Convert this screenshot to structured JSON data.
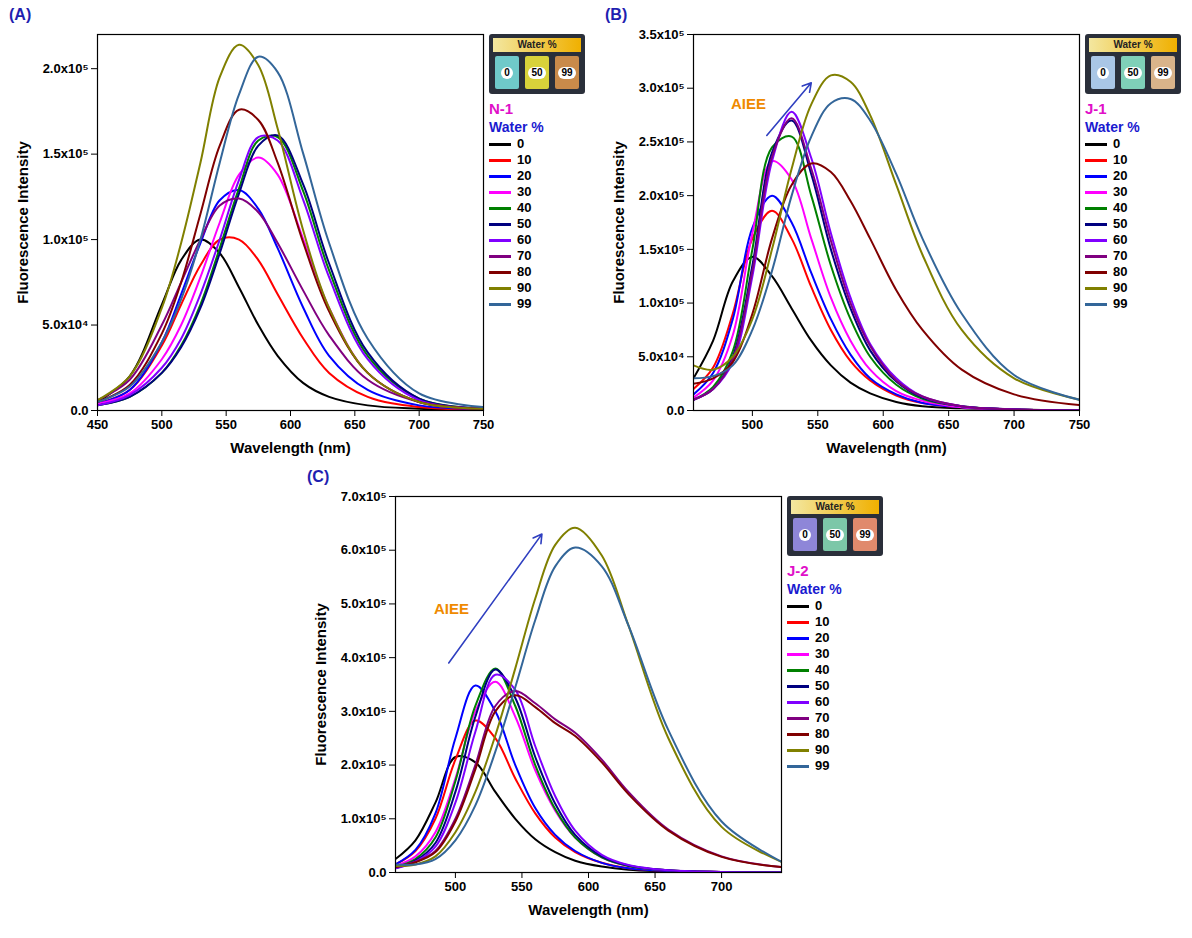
{
  "chart_data": [
    {
      "type": "line",
      "panel_label": "(A)",
      "legend_title": "N-1",
      "legend_subtitle": "Water %",
      "legend": "right",
      "grid": false,
      "x_label": "Wavelength (nm)",
      "y_label": "Fluorescence Intensity",
      "xlim": [
        450,
        750
      ],
      "xticks": [
        450,
        500,
        550,
        600,
        650,
        700,
        750
      ],
      "ylim": [
        0,
        220000
      ],
      "yticks": [
        {
          "value": 0,
          "label": "0.0"
        },
        {
          "value": 50000,
          "label": "5.0x10⁴"
        },
        {
          "value": 100000,
          "label": "1.0x10⁵"
        },
        {
          "value": 150000,
          "label": "1.5x10⁵"
        },
        {
          "value": 200000,
          "label": "2.0x10⁵"
        }
      ],
      "inset": {
        "caption": "Water %",
        "labels": [
          "0",
          "50",
          "99"
        ],
        "colors": [
          "#6fc9c9",
          "#d8d23a",
          "#c98a4a"
        ]
      },
      "annotations": [],
      "x": [
        450,
        475,
        500,
        515,
        530,
        545,
        560,
        575,
        590,
        610,
        630,
        660,
        700,
        750
      ],
      "series": [
        {
          "name": "0",
          "color": "#000000",
          "values": [
            5000,
            20000,
            62000,
            88000,
            100000,
            92000,
            72000,
            50000,
            32000,
            16000,
            8000,
            3000,
            1000,
            0
          ]
        },
        {
          "name": "10",
          "color": "#ff0000",
          "values": [
            4000,
            12000,
            38000,
            62000,
            85000,
            100000,
            100000,
            88000,
            68000,
            42000,
            22000,
            8000,
            2000,
            500
          ]
        },
        {
          "name": "20",
          "color": "#0000ff",
          "values": [
            4000,
            12000,
            40000,
            68000,
            98000,
            123000,
            129000,
            118000,
            95000,
            60000,
            32000,
            12000,
            3000,
            1000
          ]
        },
        {
          "name": "30",
          "color": "#ff00ff",
          "values": [
            4000,
            10000,
            30000,
            50000,
            78000,
            110000,
            138000,
            148000,
            138000,
            100000,
            60000,
            22000,
            5000,
            1000
          ]
        },
        {
          "name": "40",
          "color": "#008000",
          "values": [
            3000,
            8000,
            22000,
            38000,
            62000,
            95000,
            130000,
            158000,
            160000,
            128000,
            82000,
            32000,
            7000,
            1000
          ]
        },
        {
          "name": "50",
          "color": "#000080",
          "values": [
            3000,
            8000,
            22000,
            37000,
            60000,
            92000,
            127000,
            155000,
            161000,
            132000,
            86000,
            34000,
            7000,
            1000
          ]
        },
        {
          "name": "60",
          "color": "#8000ff",
          "values": [
            3000,
            9000,
            25000,
            42000,
            68000,
            100000,
            135000,
            160000,
            158000,
            123000,
            78000,
            30000,
            6000,
            1000
          ]
        },
        {
          "name": "70",
          "color": "#800080",
          "values": [
            6000,
            18000,
            50000,
            75000,
            100000,
            120000,
            124000,
            116000,
            98000,
            70000,
            44000,
            18000,
            5000,
            1000
          ]
        },
        {
          "name": "80",
          "color": "#800000",
          "values": [
            5000,
            15000,
            45000,
            75000,
            115000,
            155000,
            176000,
            170000,
            145000,
            98000,
            58000,
            22000,
            5000,
            1000
          ]
        },
        {
          "name": "90",
          "color": "#808000",
          "values": [
            6000,
            20000,
            60000,
            98000,
            145000,
            195000,
            214000,
            202000,
            165000,
            105000,
            60000,
            22000,
            5000,
            1000
          ]
        },
        {
          "name": "99",
          "color": "#336699",
          "values": [
            5000,
            14000,
            40000,
            65000,
            100000,
            145000,
            185000,
            207000,
            198000,
            150000,
            98000,
            42000,
            10000,
            2000
          ]
        }
      ]
    },
    {
      "type": "line",
      "panel_label": "(B)",
      "legend_title": "J-1",
      "legend_subtitle": "Water %",
      "legend": "right",
      "grid": false,
      "x_label": "Wavelength (nm)",
      "y_label": "Fluorescence Intensity",
      "xlim": [
        455,
        750
      ],
      "xticks": [
        500,
        550,
        600,
        650,
        700,
        750
      ],
      "ylim": [
        0,
        350000
      ],
      "yticks": [
        {
          "value": 0,
          "label": "0.0"
        },
        {
          "value": 50000,
          "label": "5.0x10⁴"
        },
        {
          "value": 100000,
          "label": "1.0x10⁵"
        },
        {
          "value": 150000,
          "label": "1.5x10⁵"
        },
        {
          "value": 200000,
          "label": "2.0x10⁵"
        },
        {
          "value": 250000,
          "label": "2.5x10⁵"
        },
        {
          "value": 300000,
          "label": "3.0x10⁵"
        },
        {
          "value": 350000,
          "label": "3.5x10⁵"
        }
      ],
      "inset": {
        "caption": "Water %",
        "labels": [
          "0",
          "50",
          "99"
        ],
        "colors": [
          "#a9c6e6",
          "#7fd0b8",
          "#d9b48a"
        ]
      },
      "annotations": [
        {
          "text": "AIEE",
          "x": 497,
          "y": 285000,
          "arrow": {
            "x1": 511,
            "y1": 256000,
            "x2": 545,
            "y2": 305000
          }
        }
      ],
      "x": [
        455,
        470,
        485,
        500,
        515,
        530,
        545,
        560,
        575,
        590,
        610,
        630,
        660,
        700,
        750
      ],
      "series": [
        {
          "name": "0",
          "color": "#000000",
          "values": [
            30000,
            65000,
            120000,
            143000,
            125000,
            95000,
            65000,
            42000,
            26000,
            16000,
            8000,
            4000,
            2000,
            1000,
            0
          ]
        },
        {
          "name": "10",
          "color": "#ff0000",
          "values": [
            20000,
            40000,
            90000,
            160000,
            186000,
            160000,
            115000,
            75000,
            46000,
            28000,
            14000,
            7000,
            3000,
            1000,
            0
          ]
        },
        {
          "name": "20",
          "color": "#0000ff",
          "values": [
            15000,
            35000,
            85000,
            170000,
            200000,
            175000,
            128000,
            85000,
            52000,
            30000,
            15000,
            7000,
            3000,
            1000,
            0
          ]
        },
        {
          "name": "30",
          "color": "#ff00ff",
          "values": [
            12000,
            28000,
            70000,
            165000,
            232000,
            215000,
            160000,
            105000,
            65000,
            38000,
            18000,
            9000,
            3000,
            1000,
            0
          ]
        },
        {
          "name": "40",
          "color": "#008000",
          "values": [
            10000,
            22000,
            55000,
            150000,
            245000,
            255000,
            200000,
            135000,
            85000,
            50000,
            24000,
            11000,
            4000,
            1000,
            0
          ]
        },
        {
          "name": "50",
          "color": "#000080",
          "values": [
            10000,
            20000,
            50000,
            135000,
            240000,
            270000,
            220000,
            150000,
            95000,
            56000,
            27000,
            12000,
            4000,
            1000,
            0
          ]
        },
        {
          "name": "60",
          "color": "#8000ff",
          "values": [
            10000,
            20000,
            45000,
            125000,
            232000,
            278000,
            235000,
            165000,
            105000,
            62000,
            30000,
            13000,
            4000,
            1000,
            0
          ]
        },
        {
          "name": "70",
          "color": "#800080",
          "values": [
            10000,
            20000,
            48000,
            130000,
            236000,
            272000,
            225000,
            158000,
            100000,
            60000,
            28000,
            13000,
            4000,
            1000,
            0
          ]
        },
        {
          "name": "80",
          "color": "#800000",
          "values": [
            25000,
            30000,
            45000,
            90000,
            160000,
            210000,
            230000,
            222000,
            195000,
            160000,
            112000,
            75000,
            38000,
            15000,
            5000
          ]
        },
        {
          "name": "90",
          "color": "#808000",
          "values": [
            42000,
            38000,
            50000,
            85000,
            150000,
            225000,
            285000,
            312000,
            306000,
            275000,
            210000,
            145000,
            75000,
            30000,
            10000
          ]
        },
        {
          "name": "99",
          "color": "#336699",
          "values": [
            30000,
            32000,
            42000,
            75000,
            130000,
            200000,
            255000,
            286000,
            290000,
            270000,
            220000,
            160000,
            90000,
            33000,
            10000
          ]
        }
      ]
    },
    {
      "type": "line",
      "panel_label": "(C)",
      "legend_title": "J-2",
      "legend_subtitle": "Water %",
      "legend": "right",
      "grid": false,
      "x_label": "Wavelength (nm)",
      "y_label": "Fluorescence Intensity",
      "xlim": [
        455,
        745
      ],
      "xticks": [
        500,
        550,
        600,
        650,
        700
      ],
      "ylim": [
        0,
        700000
      ],
      "yticks": [
        {
          "value": 0,
          "label": "0.0"
        },
        {
          "value": 100000,
          "label": "1.0x10⁵"
        },
        {
          "value": 200000,
          "label": "2.0x10⁵"
        },
        {
          "value": 300000,
          "label": "3.0x10⁵"
        },
        {
          "value": 400000,
          "label": "4.0x10⁵"
        },
        {
          "value": 500000,
          "label": "5.0x10⁵"
        },
        {
          "value": 600000,
          "label": "6.0x10⁵"
        },
        {
          "value": 700000,
          "label": "7.0x10⁵"
        }
      ],
      "inset": {
        "caption": "Water %",
        "labels": [
          "0",
          "50",
          "99"
        ],
        "colors": [
          "#8e86d8",
          "#7cc7a8",
          "#e08a6c"
        ]
      },
      "annotations": [
        {
          "text": "AIEE",
          "x": 497,
          "y": 490000,
          "arrow": {
            "x1": 495,
            "y1": 390000,
            "x2": 565,
            "y2": 630000
          }
        }
      ],
      "x": [
        455,
        470,
        485,
        500,
        515,
        530,
        545,
        560,
        575,
        590,
        610,
        630,
        660,
        700,
        745
      ],
      "series": [
        {
          "name": "0",
          "color": "#000000",
          "values": [
            25000,
            60000,
            130000,
            215000,
            205000,
            150000,
            100000,
            62000,
            38000,
            22000,
            11000,
            5000,
            2000,
            0,
            0
          ]
        },
        {
          "name": "10",
          "color": "#ff0000",
          "values": [
            15000,
            40000,
            100000,
            210000,
            283000,
            250000,
            175000,
            110000,
            65000,
            38000,
            18000,
            8000,
            3000,
            1000,
            0
          ]
        },
        {
          "name": "20",
          "color": "#0000ff",
          "values": [
            15000,
            42000,
            110000,
            250000,
            348000,
            300000,
            200000,
            120000,
            70000,
            40000,
            18000,
            8000,
            3000,
            1000,
            0
          ]
        },
        {
          "name": "30",
          "color": "#ff00ff",
          "values": [
            12000,
            30000,
            75000,
            175000,
            300000,
            355000,
            290000,
            190000,
            115000,
            65000,
            28000,
            12000,
            4000,
            1000,
            0
          ]
        },
        {
          "name": "40",
          "color": "#008000",
          "values": [
            10000,
            25000,
            65000,
            170000,
            310000,
            380000,
            310000,
            200000,
            118000,
            65000,
            28000,
            12000,
            4000,
            1000,
            0
          ]
        },
        {
          "name": "50",
          "color": "#000080",
          "values": [
            8000,
            22000,
            55000,
            150000,
            290000,
            378000,
            325000,
            215000,
            128000,
            70000,
            30000,
            13000,
            4000,
            1000,
            0
          ]
        },
        {
          "name": "60",
          "color": "#8000ff",
          "values": [
            8000,
            20000,
            48000,
            130000,
            262000,
            368000,
            340000,
            235000,
            142000,
            78000,
            33000,
            14000,
            4000,
            1000,
            0
          ]
        },
        {
          "name": "70",
          "color": "#800080",
          "values": [
            10000,
            20000,
            40000,
            100000,
            200000,
            310000,
            338000,
            315000,
            285000,
            260000,
            210000,
            150000,
            80000,
            30000,
            10000
          ]
        },
        {
          "name": "80",
          "color": "#800000",
          "values": [
            10000,
            19000,
            38000,
            95000,
            192000,
            300000,
            330000,
            308000,
            278000,
            254000,
            205000,
            146000,
            78000,
            29000,
            10000
          ]
        },
        {
          "name": "90",
          "color": "#808000",
          "values": [
            12000,
            15000,
            30000,
            75000,
            150000,
            255000,
            380000,
            510000,
            610000,
            642000,
            590000,
            460000,
            250000,
            85000,
            20000
          ]
        },
        {
          "name": "99",
          "color": "#336699",
          "values": [
            15000,
            15000,
            25000,
            60000,
            125000,
            225000,
            345000,
            470000,
            570000,
            605000,
            570000,
            460000,
            265000,
            95000,
            20000
          ]
        }
      ]
    }
  ]
}
